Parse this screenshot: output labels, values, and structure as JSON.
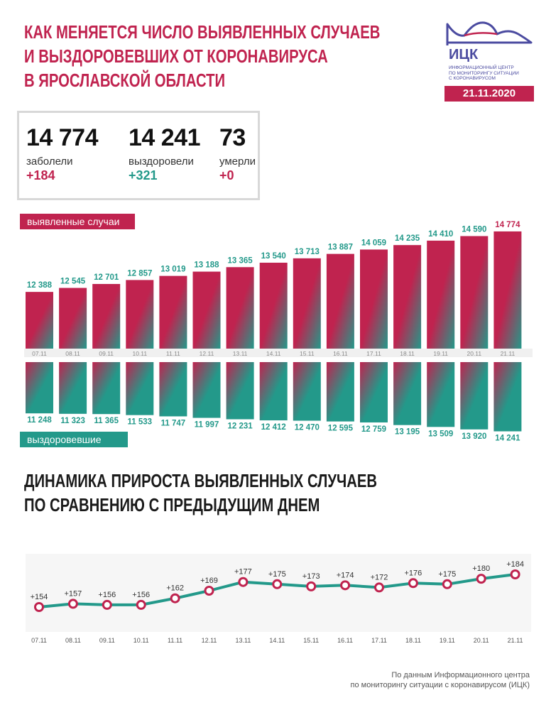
{
  "header": {
    "title_lines": [
      "КАК МЕНЯЕТСЯ ЧИСЛО ВЫЯВЛЕННЫХ СЛУЧАЕВ",
      "И ВЫЗДОРОВЕВШИХ ОТ КОРОНАВИРУСА",
      "В ЯРОСЛАВСКОЙ ОБЛАСТИ"
    ],
    "logo_name": "ИЦК",
    "logo_subtitle_lines": [
      "информационный центр",
      "по мониторингу ситуации",
      "с коронавирусом"
    ],
    "date": "21.11.2020"
  },
  "stats": [
    {
      "value": "14 774",
      "label": "заболели",
      "delta": "+184"
    },
    {
      "value": "14 241",
      "label": "выздоровели",
      "delta": "+321"
    },
    {
      "value": "73",
      "label": "умерли",
      "delta": "+0"
    }
  ],
  "legend": {
    "cases": "выявленные случаи",
    "recovered": "выздоровевшие"
  },
  "section2_title_lines": [
    "ДИНАМИКА ПРИРОСТА ВЫЯВЛЕННЫХ СЛУЧАЕВ",
    "ПО СРАВНЕНИЮ С ПРЕДЫДУЩИМ ДНЕМ"
  ],
  "footnote_lines": [
    "По данным Информационного центра",
    "по мониторингу ситуации с коронавирусом (ИЦК)"
  ],
  "colors": {
    "accent_red": "#c0234f",
    "accent_green": "#23998a",
    "line_dot_fill": "#ffffff"
  },
  "chart_data": [
    {
      "type": "bar",
      "categories": [
        "07.11",
        "08.11",
        "09.11",
        "10.11",
        "11.11",
        "12.11",
        "13.11",
        "14.11",
        "15.11",
        "16.11",
        "17.11",
        "18.11",
        "19.11",
        "20.11",
        "21.11"
      ],
      "series": [
        {
          "name": "выявленные случаи",
          "values": [
            12388,
            12545,
            12701,
            12857,
            13019,
            13188,
            13365,
            13540,
            13713,
            13887,
            14059,
            14235,
            14410,
            14590,
            14774
          ],
          "labels": [
            "12 388",
            "12 545",
            "12 701",
            "12 857",
            "13 019",
            "13 188",
            "13 365",
            "13 540",
            "13 713",
            "13 887",
            "14 059",
            "14 235",
            "14 410",
            "14 590",
            "14 774"
          ]
        },
        {
          "name": "выздоровевшие",
          "values": [
            11248,
            11323,
            11365,
            11533,
            11747,
            11997,
            12231,
            12412,
            12470,
            12595,
            12759,
            13195,
            13509,
            13920,
            14241
          ],
          "labels": [
            "11 248",
            "11 323",
            "11 365",
            "11 533",
            "11 747",
            "11 997",
            "12 231",
            "12 412",
            "12 470",
            "12 595",
            "12 759",
            "13 195",
            "13 509",
            "13 920",
            "14 241"
          ]
        }
      ]
    },
    {
      "type": "line",
      "categories": [
        "07.11",
        "08.11",
        "09.11",
        "10.11",
        "11.11",
        "12.11",
        "13.11",
        "14.11",
        "15.11",
        "16.11",
        "17.11",
        "18.11",
        "19.11",
        "20.11",
        "21.11"
      ],
      "series": [
        {
          "values": [
            154,
            157,
            156,
            156,
            162,
            169,
            177,
            175,
            173,
            174,
            172,
            176,
            175,
            180,
            184
          ],
          "labels": [
            "+154",
            "+157",
            "+156",
            "+156",
            "+162",
            "+169",
            "+177",
            "+175",
            "+173",
            "+174",
            "+172",
            "+176",
            "+175",
            "+180",
            "+184"
          ]
        }
      ]
    }
  ]
}
